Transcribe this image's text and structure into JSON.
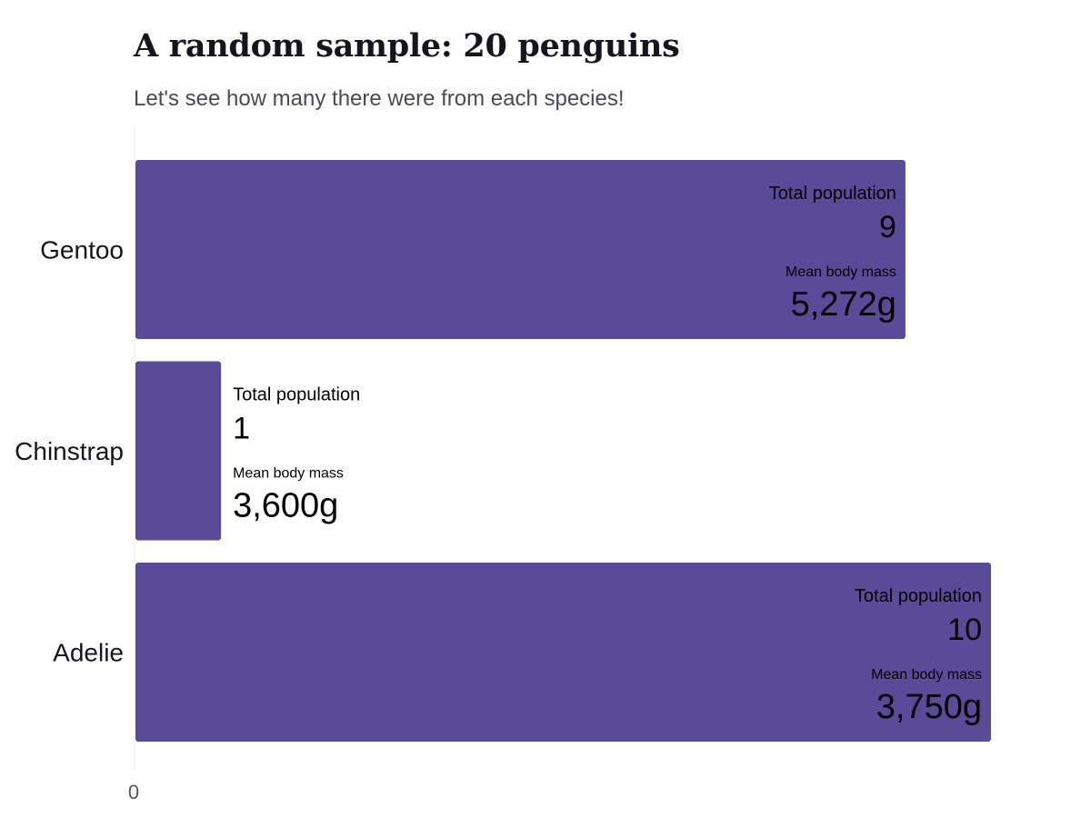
{
  "chart_data": {
    "type": "bar",
    "orientation": "horizontal",
    "title": "A random sample: 20 penguins",
    "subtitle": "Let's see how many there were from each species!",
    "categories": [
      "Gentoo",
      "Chinstrap",
      "Adelie"
    ],
    "series": [
      {
        "values": [
          9,
          1,
          10
        ],
        "mean_body_mass": [
          "5,272g",
          "3,600g",
          "3,750g"
        ]
      }
    ],
    "data_label_titles": {
      "population": "Total population",
      "mass": "Mean body mass"
    },
    "x_ticks": [
      "0"
    ],
    "xlim": [
      0,
      10
    ],
    "grid": false,
    "bar_color": "#5a4a98"
  }
}
